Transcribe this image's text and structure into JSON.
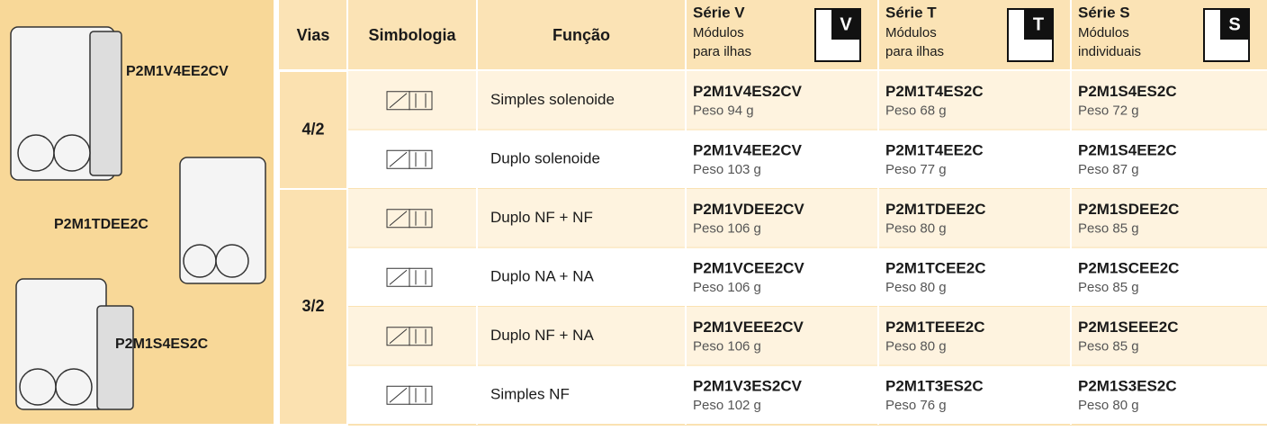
{
  "products": [
    {
      "label": "P2M1V4EE2CV"
    },
    {
      "label": "P2M1TDEE2C"
    },
    {
      "label": "P2M1S4ES2C"
    }
  ],
  "table": {
    "header": {
      "vias": "Vias",
      "simbologia": "Simbologia",
      "funcao": "Função",
      "series": [
        {
          "name": "Série V",
          "desc": [
            "Módulos",
            "para ilhas"
          ],
          "icon": "V"
        },
        {
          "name": "Série T",
          "desc": [
            "Módulos",
            "para ilhas"
          ],
          "icon": "T"
        },
        {
          "name": "Série S",
          "desc": [
            "Módulos",
            "individuais"
          ],
          "icon": "S"
        }
      ]
    },
    "groups": [
      {
        "vias": "4/2",
        "rows": [
          {
            "funcao": "Simples solenoide",
            "cells": [
              {
                "code": "P2M1V4ES2CV",
                "peso": "Peso 94 g"
              },
              {
                "code": "P2M1T4ES2C",
                "peso": "Peso 68 g"
              },
              {
                "code": "P2M1S4ES2C",
                "peso": "Peso 72 g"
              }
            ]
          },
          {
            "funcao": "Duplo solenoide",
            "cells": [
              {
                "code": "P2M1V4EE2CV",
                "peso": "Peso 103 g"
              },
              {
                "code": "P2M1T4EE2C",
                "peso": "Peso 77 g"
              },
              {
                "code": "P2M1S4EE2C",
                "peso": "Peso 87 g"
              }
            ]
          }
        ]
      },
      {
        "vias": "3/2",
        "rows": [
          {
            "funcao": "Duplo NF + NF",
            "cells": [
              {
                "code": "P2M1VDEE2CV",
                "peso": "Peso 106 g"
              },
              {
                "code": "P2M1TDEE2C",
                "peso": "Peso 80 g"
              },
              {
                "code": "P2M1SDEE2C",
                "peso": "Peso 85 g"
              }
            ]
          },
          {
            "funcao": "Duplo NA + NA",
            "cells": [
              {
                "code": "P2M1VCEE2CV",
                "peso": "Peso 106 g"
              },
              {
                "code": "P2M1TCEE2C",
                "peso": "Peso 80 g"
              },
              {
                "code": "P2M1SCEE2C",
                "peso": "Peso 85 g"
              }
            ]
          },
          {
            "funcao": "Duplo NF + NA",
            "cells": [
              {
                "code": "P2M1VEEE2CV",
                "peso": "Peso 106 g"
              },
              {
                "code": "P2M1TEEE2C",
                "peso": "Peso 80 g"
              },
              {
                "code": "P2M1SEEE2C",
                "peso": "Peso 85 g"
              }
            ]
          },
          {
            "funcao": "Simples NF",
            "cells": [
              {
                "code": "P2M1V3ES2CV",
                "peso": "Peso 102 g"
              },
              {
                "code": "P2M1T3ES2C",
                "peso": "Peso 76 g"
              },
              {
                "code": "P2M1S3ES2C",
                "peso": "Peso 80 g"
              }
            ]
          }
        ]
      }
    ]
  }
}
